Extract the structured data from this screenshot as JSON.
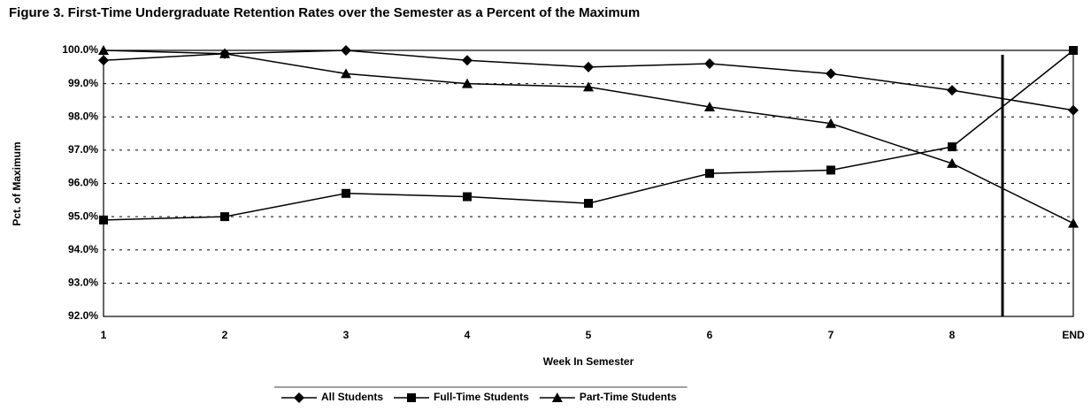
{
  "chart_data": {
    "type": "line",
    "title": "Figure 3. First-Time Undergraduate Retention Rates over the Semester as a Percent of the Maximum",
    "x_label": "Week In Semester",
    "y_label": "Pct. of Maximum",
    "categories": [
      "1",
      "2",
      "3",
      "4",
      "5",
      "6",
      "7",
      "8",
      "END"
    ],
    "series": [
      {
        "name": "All Students",
        "color": "#000000",
        "marker": "diamond",
        "values": [
          99.7,
          99.9,
          100.0,
          99.7,
          99.5,
          99.6,
          99.3,
          98.8,
          98.2
        ]
      },
      {
        "name": "Full-Time Students",
        "color": "#000000",
        "marker": "square",
        "values": [
          94.9,
          95.0,
          95.7,
          95.6,
          95.4,
          96.3,
          96.4,
          97.1,
          100.0
        ]
      },
      {
        "name": "Part-Time Students",
        "color": "#000000",
        "marker": "triangle",
        "values": [
          100.0,
          99.9,
          99.3,
          99.0,
          98.9,
          98.3,
          97.8,
          96.6,
          94.8
        ]
      }
    ],
    "ylim": [
      92,
      100
    ],
    "yticks": [
      {
        "value": 92,
        "label": "92.0%"
      },
      {
        "value": 93,
        "label": "93.0%"
      },
      {
        "value": 94,
        "label": "94.0%"
      },
      {
        "value": 95,
        "label": "95.0%"
      },
      {
        "value": 96,
        "label": "96.0%"
      },
      {
        "value": 97,
        "label": "97.0%"
      },
      {
        "value": 98,
        "label": "98.0%"
      },
      {
        "value": 99,
        "label": "99.0%"
      },
      {
        "value": 100,
        "label": "100.0%"
      }
    ],
    "grid": true,
    "legend": "bottom"
  }
}
